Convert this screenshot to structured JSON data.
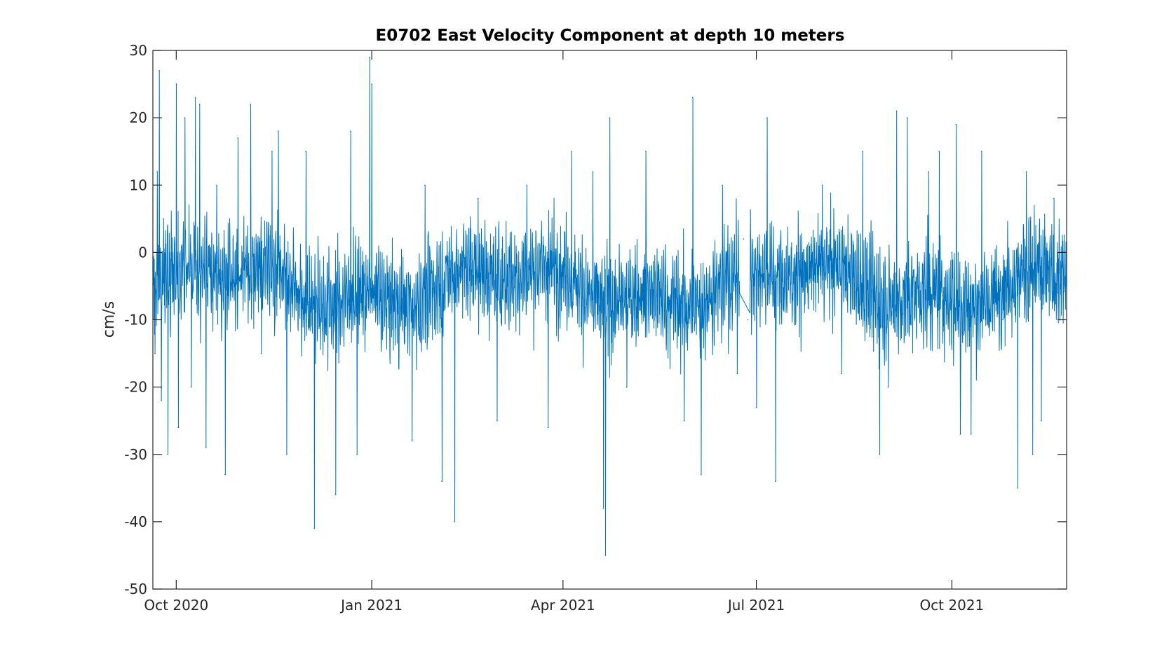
{
  "chart_data": {
    "type": "line",
    "title": "E0702 East Velocity Component at depth 10 meters",
    "xlabel": "",
    "ylabel": "cm/s",
    "xlim": [
      "2020-09-20",
      "2021-11-24"
    ],
    "ylim": [
      -50,
      30
    ],
    "grid": false,
    "legend": "none",
    "line_color": "#0072BD",
    "x_ticks": [
      {
        "date": "2020-10-01",
        "label": "Oct 2020"
      },
      {
        "date": "2021-01-01",
        "label": "Jan 2021"
      },
      {
        "date": "2021-04-01",
        "label": "Apr 2021"
      },
      {
        "date": "2021-07-01",
        "label": "Jul 2021"
      },
      {
        "date": "2021-10-01",
        "label": "Oct 2021"
      }
    ],
    "y_ticks": [
      30,
      20,
      10,
      0,
      -10,
      -20,
      -30,
      -40,
      -50
    ],
    "series": [
      {
        "name": "",
        "note_resolution": "hourly samples; values below are notable peaks/troughs read from the plot",
        "x": [
          "2020-09-21",
          "2020-09-22",
          "2020-09-23",
          "2020-09-24",
          "2020-09-25",
          "2020-09-27",
          "2020-10-01",
          "2020-10-02",
          "2020-10-05",
          "2020-10-08",
          "2020-10-10",
          "2020-10-12",
          "2020-10-15",
          "2020-10-20",
          "2020-10-24",
          "2020-10-30",
          "2020-11-01",
          "2020-11-05",
          "2020-11-10",
          "2020-11-15",
          "2020-11-18",
          "2020-11-22",
          "2020-12-01",
          "2020-12-05",
          "2020-12-15",
          "2020-12-22",
          "2020-12-25",
          "2020-12-31",
          "2021-01-01",
          "2021-01-04",
          "2021-01-20",
          "2021-01-26",
          "2021-02-03",
          "2021-02-09",
          "2021-02-20",
          "2021-03-01",
          "2021-03-15",
          "2021-03-25",
          "2021-04-05",
          "2021-04-15",
          "2021-04-20",
          "2021-04-21",
          "2021-04-23",
          "2021-05-01",
          "2021-05-10",
          "2021-05-20",
          "2021-05-28",
          "2021-06-01",
          "2021-06-05",
          "2021-06-15",
          "2021-06-22",
          "2021-06-25",
          "2021-06-27",
          "2021-07-01",
          "2021-07-06",
          "2021-07-10",
          "2021-07-20",
          "2021-08-01",
          "2021-08-10",
          "2021-08-20",
          "2021-08-28",
          "2021-09-01",
          "2021-09-05",
          "2021-09-10",
          "2021-09-15",
          "2021-09-20",
          "2021-09-25",
          "2021-10-01",
          "2021-10-03",
          "2021-10-05",
          "2021-10-10",
          "2021-10-15",
          "2021-10-25",
          "2021-11-01",
          "2021-11-05",
          "2021-11-08",
          "2021-11-12",
          "2021-11-18",
          "2021-11-23"
        ],
        "y": [
          -15,
          12,
          27,
          -22,
          5,
          -30,
          25,
          -26,
          20,
          -20,
          23,
          22,
          -29,
          10,
          -33,
          17,
          0,
          22,
          -15,
          15,
          18,
          -30,
          15,
          -41,
          -36,
          18,
          -30,
          29,
          25,
          -3,
          -28,
          10,
          -34,
          -40,
          8,
          -25,
          10,
          -26,
          15,
          12,
          -38,
          -45,
          20,
          -20,
          15,
          -5,
          -25,
          23,
          -33,
          10,
          -18,
          2,
          -10,
          -23,
          20,
          -34,
          0,
          10,
          -18,
          15,
          -30,
          -20,
          21,
          20,
          -5,
          12,
          15,
          0,
          19,
          -27,
          -27,
          15,
          -10,
          -35,
          12,
          -30,
          -25,
          8,
          -5
        ]
      }
    ]
  }
}
